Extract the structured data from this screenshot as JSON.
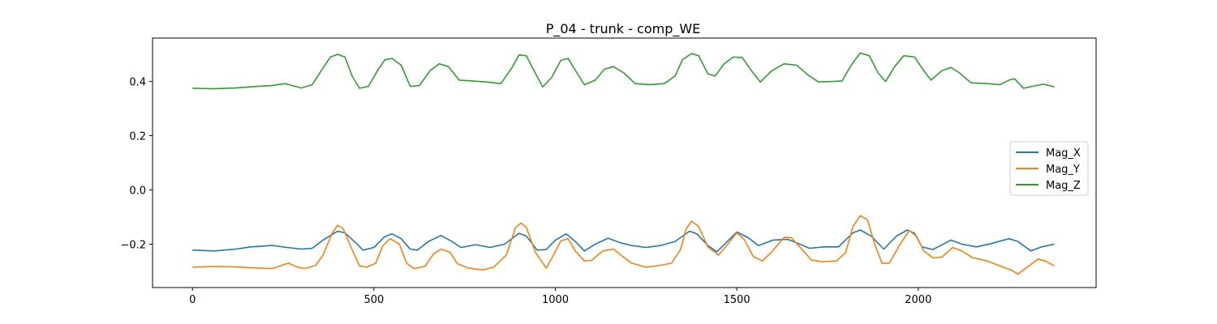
{
  "chart_data": {
    "type": "line",
    "title": "P_04 - trunk - comp_WE",
    "xlabel": "",
    "ylabel": "",
    "xlim": [
      -110,
      2490
    ],
    "ylim": [
      -0.36,
      0.56
    ],
    "xticks": [
      0,
      500,
      1000,
      1500,
      2000
    ],
    "yticks": [
      -0.2,
      0.0,
      0.2,
      0.4
    ],
    "ytick_labels": [
      "−0.2",
      "0.0",
      "0.2",
      "0.4"
    ],
    "grid": false,
    "legend_position": "center-right",
    "series": [
      {
        "name": "Mag_X",
        "color": "#1f77b4",
        "points": [
          [
            0,
            -0.222
          ],
          [
            60,
            -0.225
          ],
          [
            120,
            -0.218
          ],
          [
            160,
            -0.21
          ],
          [
            220,
            -0.205
          ],
          [
            260,
            -0.212
          ],
          [
            300,
            -0.218
          ],
          [
            330,
            -0.215
          ],
          [
            360,
            -0.185
          ],
          [
            400,
            -0.152
          ],
          [
            420,
            -0.158
          ],
          [
            450,
            -0.195
          ],
          [
            470,
            -0.222
          ],
          [
            500,
            -0.212
          ],
          [
            530,
            -0.172
          ],
          [
            550,
            -0.162
          ],
          [
            575,
            -0.18
          ],
          [
            600,
            -0.218
          ],
          [
            620,
            -0.222
          ],
          [
            650,
            -0.19
          ],
          [
            685,
            -0.168
          ],
          [
            715,
            -0.19
          ],
          [
            740,
            -0.212
          ],
          [
            780,
            -0.202
          ],
          [
            820,
            -0.212
          ],
          [
            860,
            -0.2
          ],
          [
            900,
            -0.16
          ],
          [
            920,
            -0.17
          ],
          [
            950,
            -0.222
          ],
          [
            975,
            -0.22
          ],
          [
            1000,
            -0.185
          ],
          [
            1030,
            -0.162
          ],
          [
            1055,
            -0.19
          ],
          [
            1080,
            -0.225
          ],
          [
            1110,
            -0.2
          ],
          [
            1145,
            -0.178
          ],
          [
            1180,
            -0.195
          ],
          [
            1210,
            -0.205
          ],
          [
            1250,
            -0.212
          ],
          [
            1290,
            -0.205
          ],
          [
            1330,
            -0.19
          ],
          [
            1370,
            -0.152
          ],
          [
            1390,
            -0.162
          ],
          [
            1420,
            -0.205
          ],
          [
            1445,
            -0.228
          ],
          [
            1470,
            -0.195
          ],
          [
            1500,
            -0.155
          ],
          [
            1530,
            -0.175
          ],
          [
            1560,
            -0.205
          ],
          [
            1600,
            -0.185
          ],
          [
            1640,
            -0.182
          ],
          [
            1665,
            -0.195
          ],
          [
            1700,
            -0.215
          ],
          [
            1740,
            -0.21
          ],
          [
            1780,
            -0.21
          ],
          [
            1820,
            -0.158
          ],
          [
            1840,
            -0.148
          ],
          [
            1870,
            -0.17
          ],
          [
            1905,
            -0.218
          ],
          [
            1940,
            -0.17
          ],
          [
            1970,
            -0.148
          ],
          [
            1990,
            -0.16
          ],
          [
            2010,
            -0.21
          ],
          [
            2040,
            -0.22
          ],
          [
            2090,
            -0.185
          ],
          [
            2120,
            -0.2
          ],
          [
            2160,
            -0.21
          ],
          [
            2200,
            -0.198
          ],
          [
            2250,
            -0.18
          ],
          [
            2275,
            -0.19
          ],
          [
            2310,
            -0.225
          ],
          [
            2340,
            -0.21
          ],
          [
            2375,
            -0.2
          ]
        ]
      },
      {
        "name": "Mag_Y",
        "color": "#ff7f0e",
        "points": [
          [
            0,
            -0.285
          ],
          [
            60,
            -0.282
          ],
          [
            120,
            -0.284
          ],
          [
            180,
            -0.288
          ],
          [
            220,
            -0.29
          ],
          [
            250,
            -0.276
          ],
          [
            265,
            -0.27
          ],
          [
            285,
            -0.283
          ],
          [
            310,
            -0.29
          ],
          [
            340,
            -0.278
          ],
          [
            360,
            -0.24
          ],
          [
            385,
            -0.16
          ],
          [
            400,
            -0.13
          ],
          [
            415,
            -0.142
          ],
          [
            440,
            -0.22
          ],
          [
            460,
            -0.28
          ],
          [
            480,
            -0.285
          ],
          [
            505,
            -0.27
          ],
          [
            525,
            -0.205
          ],
          [
            545,
            -0.18
          ],
          [
            570,
            -0.2
          ],
          [
            590,
            -0.27
          ],
          [
            610,
            -0.29
          ],
          [
            640,
            -0.282
          ],
          [
            665,
            -0.235
          ],
          [
            685,
            -0.218
          ],
          [
            710,
            -0.23
          ],
          [
            730,
            -0.272
          ],
          [
            760,
            -0.288
          ],
          [
            800,
            -0.295
          ],
          [
            830,
            -0.285
          ],
          [
            865,
            -0.24
          ],
          [
            890,
            -0.14
          ],
          [
            905,
            -0.122
          ],
          [
            920,
            -0.138
          ],
          [
            945,
            -0.23
          ],
          [
            975,
            -0.288
          ],
          [
            995,
            -0.24
          ],
          [
            1015,
            -0.188
          ],
          [
            1035,
            -0.18
          ],
          [
            1055,
            -0.225
          ],
          [
            1080,
            -0.262
          ],
          [
            1100,
            -0.26
          ],
          [
            1130,
            -0.225
          ],
          [
            1160,
            -0.218
          ],
          [
            1185,
            -0.245
          ],
          [
            1210,
            -0.27
          ],
          [
            1250,
            -0.285
          ],
          [
            1290,
            -0.278
          ],
          [
            1320,
            -0.27
          ],
          [
            1345,
            -0.22
          ],
          [
            1360,
            -0.145
          ],
          [
            1375,
            -0.115
          ],
          [
            1395,
            -0.135
          ],
          [
            1420,
            -0.21
          ],
          [
            1450,
            -0.24
          ],
          [
            1475,
            -0.2
          ],
          [
            1500,
            -0.158
          ],
          [
            1520,
            -0.182
          ],
          [
            1545,
            -0.245
          ],
          [
            1570,
            -0.262
          ],
          [
            1595,
            -0.23
          ],
          [
            1630,
            -0.175
          ],
          [
            1650,
            -0.176
          ],
          [
            1680,
            -0.22
          ],
          [
            1705,
            -0.258
          ],
          [
            1735,
            -0.265
          ],
          [
            1775,
            -0.262
          ],
          [
            1800,
            -0.23
          ],
          [
            1820,
            -0.135
          ],
          [
            1840,
            -0.095
          ],
          [
            1860,
            -0.11
          ],
          [
            1880,
            -0.2
          ],
          [
            1900,
            -0.27
          ],
          [
            1920,
            -0.27
          ],
          [
            1950,
            -0.2
          ],
          [
            1975,
            -0.15
          ],
          [
            1995,
            -0.17
          ],
          [
            2015,
            -0.225
          ],
          [
            2040,
            -0.25
          ],
          [
            2065,
            -0.248
          ],
          [
            2095,
            -0.212
          ],
          [
            2120,
            -0.225
          ],
          [
            2150,
            -0.25
          ],
          [
            2190,
            -0.262
          ],
          [
            2225,
            -0.28
          ],
          [
            2255,
            -0.295
          ],
          [
            2275,
            -0.31
          ],
          [
            2300,
            -0.285
          ],
          [
            2330,
            -0.255
          ],
          [
            2350,
            -0.262
          ],
          [
            2375,
            -0.28
          ]
        ]
      },
      {
        "name": "Mag_Z",
        "color": "#2ca02c",
        "points": [
          [
            0,
            0.375
          ],
          [
            60,
            0.373
          ],
          [
            120,
            0.376
          ],
          [
            180,
            0.382
          ],
          [
            220,
            0.385
          ],
          [
            255,
            0.392
          ],
          [
            275,
            0.385
          ],
          [
            300,
            0.376
          ],
          [
            330,
            0.388
          ],
          [
            355,
            0.44
          ],
          [
            380,
            0.49
          ],
          [
            400,
            0.5
          ],
          [
            420,
            0.49
          ],
          [
            440,
            0.42
          ],
          [
            460,
            0.375
          ],
          [
            485,
            0.382
          ],
          [
            510,
            0.44
          ],
          [
            530,
            0.48
          ],
          [
            550,
            0.485
          ],
          [
            575,
            0.46
          ],
          [
            600,
            0.382
          ],
          [
            625,
            0.385
          ],
          [
            655,
            0.44
          ],
          [
            680,
            0.465
          ],
          [
            705,
            0.455
          ],
          [
            735,
            0.405
          ],
          [
            770,
            0.402
          ],
          [
            810,
            0.398
          ],
          [
            850,
            0.392
          ],
          [
            880,
            0.45
          ],
          [
            900,
            0.498
          ],
          [
            920,
            0.495
          ],
          [
            945,
            0.43
          ],
          [
            965,
            0.38
          ],
          [
            990,
            0.415
          ],
          [
            1015,
            0.478
          ],
          [
            1035,
            0.485
          ],
          [
            1060,
            0.43
          ],
          [
            1080,
            0.388
          ],
          [
            1110,
            0.405
          ],
          [
            1135,
            0.445
          ],
          [
            1160,
            0.455
          ],
          [
            1190,
            0.43
          ],
          [
            1220,
            0.392
          ],
          [
            1260,
            0.388
          ],
          [
            1300,
            0.392
          ],
          [
            1330,
            0.42
          ],
          [
            1350,
            0.48
          ],
          [
            1375,
            0.503
          ],
          [
            1395,
            0.495
          ],
          [
            1420,
            0.428
          ],
          [
            1440,
            0.42
          ],
          [
            1465,
            0.465
          ],
          [
            1490,
            0.49
          ],
          [
            1515,
            0.488
          ],
          [
            1540,
            0.44
          ],
          [
            1565,
            0.398
          ],
          [
            1595,
            0.438
          ],
          [
            1630,
            0.465
          ],
          [
            1665,
            0.46
          ],
          [
            1695,
            0.425
          ],
          [
            1725,
            0.398
          ],
          [
            1765,
            0.4
          ],
          [
            1790,
            0.402
          ],
          [
            1815,
            0.46
          ],
          [
            1840,
            0.505
          ],
          [
            1865,
            0.495
          ],
          [
            1890,
            0.43
          ],
          [
            1910,
            0.4
          ],
          [
            1935,
            0.455
          ],
          [
            1960,
            0.495
          ],
          [
            1990,
            0.49
          ],
          [
            2015,
            0.44
          ],
          [
            2035,
            0.405
          ],
          [
            2065,
            0.44
          ],
          [
            2090,
            0.452
          ],
          [
            2115,
            0.43
          ],
          [
            2145,
            0.395
          ],
          [
            2190,
            0.392
          ],
          [
            2225,
            0.388
          ],
          [
            2250,
            0.405
          ],
          [
            2265,
            0.41
          ],
          [
            2290,
            0.375
          ],
          [
            2325,
            0.385
          ],
          [
            2345,
            0.39
          ],
          [
            2375,
            0.38
          ]
        ]
      }
    ]
  }
}
